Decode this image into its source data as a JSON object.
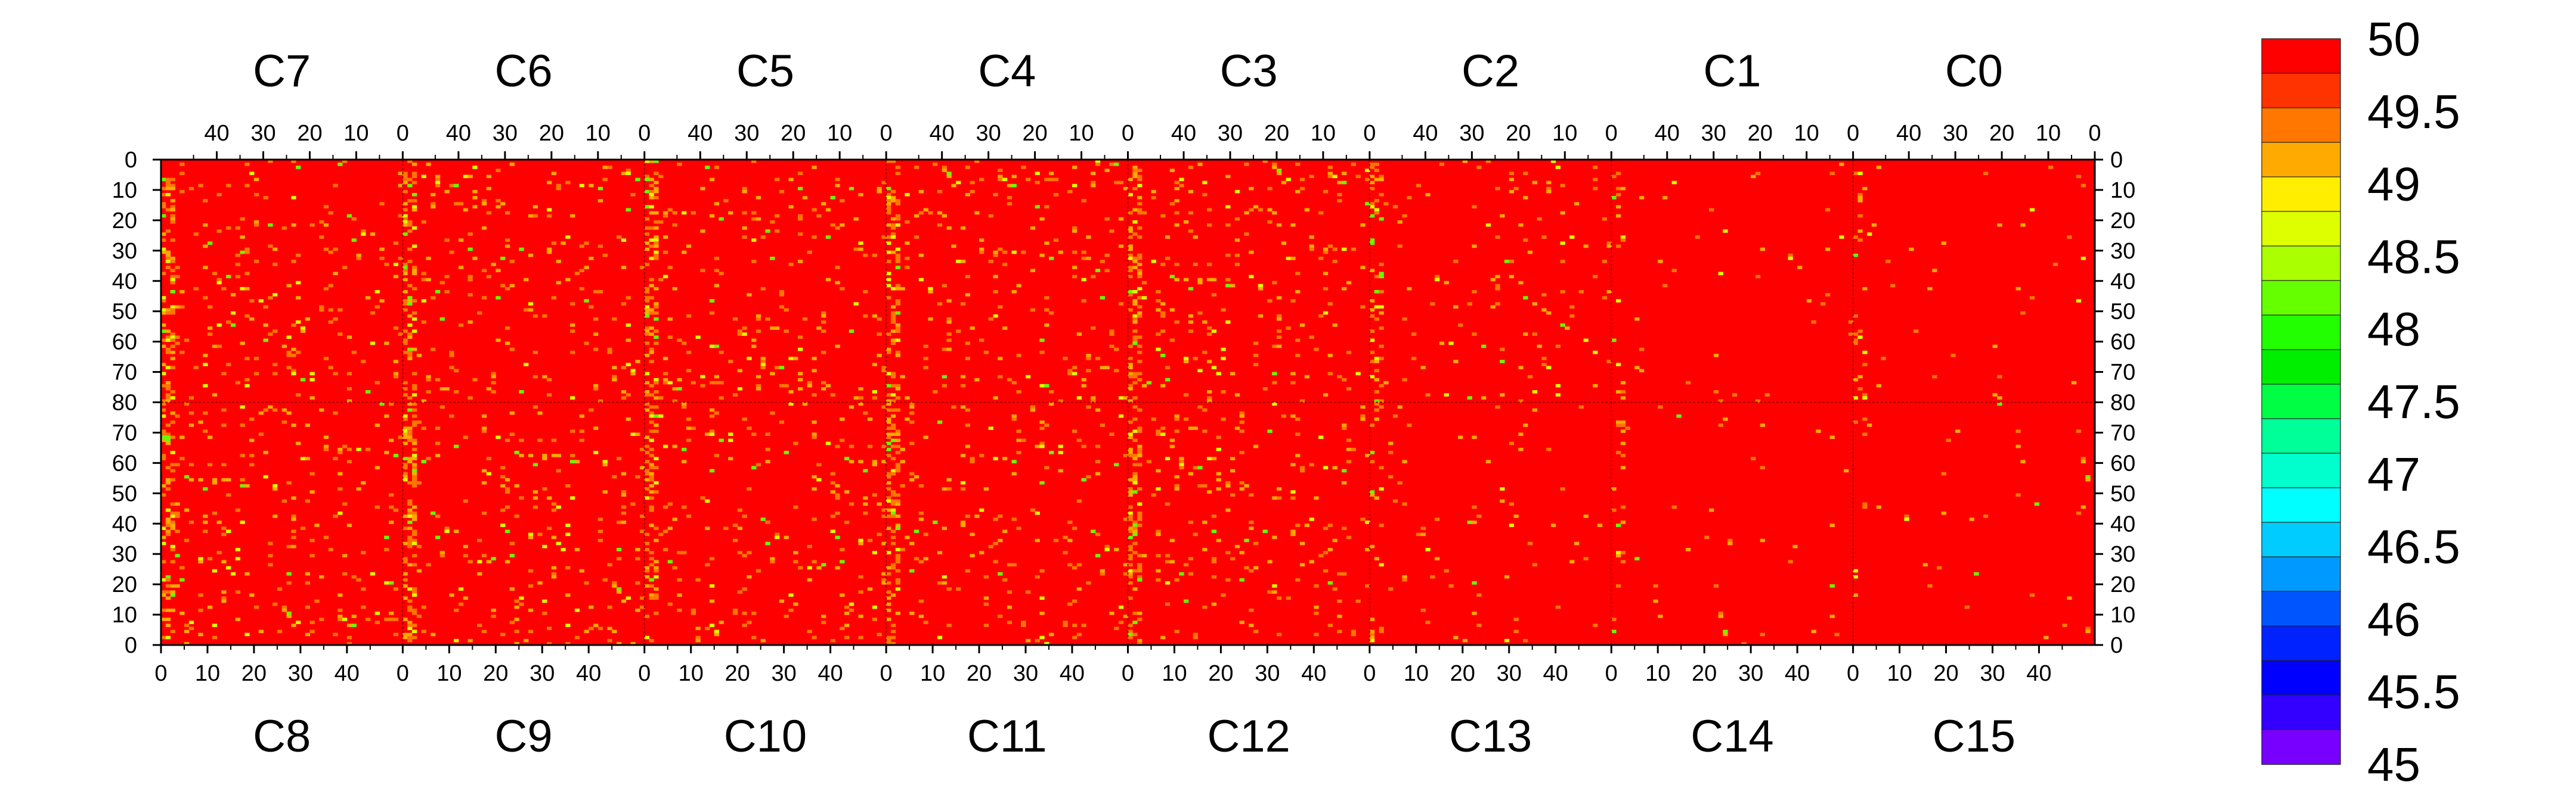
{
  "chart_data": {
    "type": "heatmap",
    "title": "",
    "xlabel": "",
    "ylabel": "",
    "top_chip_labels": [
      "C7",
      "C6",
      "C5",
      "C4",
      "C3",
      "C2",
      "C1",
      "C0"
    ],
    "bottom_chip_labels": [
      "C8",
      "C9",
      "C10",
      "C11",
      "C12",
      "C13",
      "C14",
      "C15"
    ],
    "top_x_tick_labels": [
      "40",
      "30",
      "20",
      "10",
      "0"
    ],
    "bottom_x_tick_labels": [
      "0",
      "10",
      "20",
      "30",
      "40"
    ],
    "x_range_per_chip": [
      0,
      52
    ],
    "y_tick_labels": [
      "0",
      "10",
      "20",
      "30",
      "40",
      "50",
      "60",
      "70",
      "80",
      "70",
      "60",
      "50",
      "40",
      "30",
      "20",
      "10",
      "0"
    ],
    "top_row_range": [
      0,
      80
    ],
    "bottom_row_range": [
      0,
      80
    ],
    "z_range": [
      45,
      50
    ],
    "colorbar": {
      "labels": [
        "50",
        "49.5",
        "49",
        "48.5",
        "48",
        "47.5",
        "47",
        "46.5",
        "46",
        "45.5",
        "45"
      ],
      "levels": [
        {
          "from": 49.75,
          "to": 50.0,
          "color": "#ff0000"
        },
        {
          "from": 49.5,
          "to": 49.75,
          "color": "#ff3300"
        },
        {
          "from": 49.25,
          "to": 49.5,
          "color": "#ff7700"
        },
        {
          "from": 49.0,
          "to": 49.25,
          "color": "#ffaa00"
        },
        {
          "from": 48.75,
          "to": 49.0,
          "color": "#ffee00"
        },
        {
          "from": 48.5,
          "to": 48.75,
          "color": "#ddff00"
        },
        {
          "from": 48.25,
          "to": 48.5,
          "color": "#aaff00"
        },
        {
          "from": 48.0,
          "to": 48.25,
          "color": "#66ff00"
        },
        {
          "from": 47.75,
          "to": 48.0,
          "color": "#22ff00"
        },
        {
          "from": 47.5,
          "to": 47.75,
          "color": "#00ee00"
        },
        {
          "from": 47.25,
          "to": 47.5,
          "color": "#00ff44"
        },
        {
          "from": 47.0,
          "to": 47.25,
          "color": "#00ff99"
        },
        {
          "from": 46.75,
          "to": 47.0,
          "color": "#00ffcc"
        },
        {
          "from": 46.5,
          "to": 46.75,
          "color": "#00ffff"
        },
        {
          "from": 46.25,
          "to": 46.5,
          "color": "#00ccff"
        },
        {
          "from": 46.0,
          "to": 46.25,
          "color": "#0099ff"
        },
        {
          "from": 45.75,
          "to": 46.0,
          "color": "#0055ff"
        },
        {
          "from": 45.5,
          "to": 45.75,
          "color": "#0022ff"
        },
        {
          "from": 45.25,
          "to": 45.5,
          "color": "#0000ff"
        },
        {
          "from": 45.0,
          "to": 45.25,
          "color": "#3300ff"
        },
        {
          "from": 44.75,
          "to": 45.0,
          "color": "#7700ff"
        }
      ]
    },
    "baseline_value": 50,
    "dominant_color": "#ff0000",
    "observed_off_values": [
      49.5,
      49.25,
      49.0,
      48.5,
      48.0
    ],
    "hot_column_bands_note": "Denser orange/green pixels near chip boundaries (columns 0-2) on chips C7–C3 and C8–C12; right-hand chips C13–C0 mostly uniform red."
  }
}
